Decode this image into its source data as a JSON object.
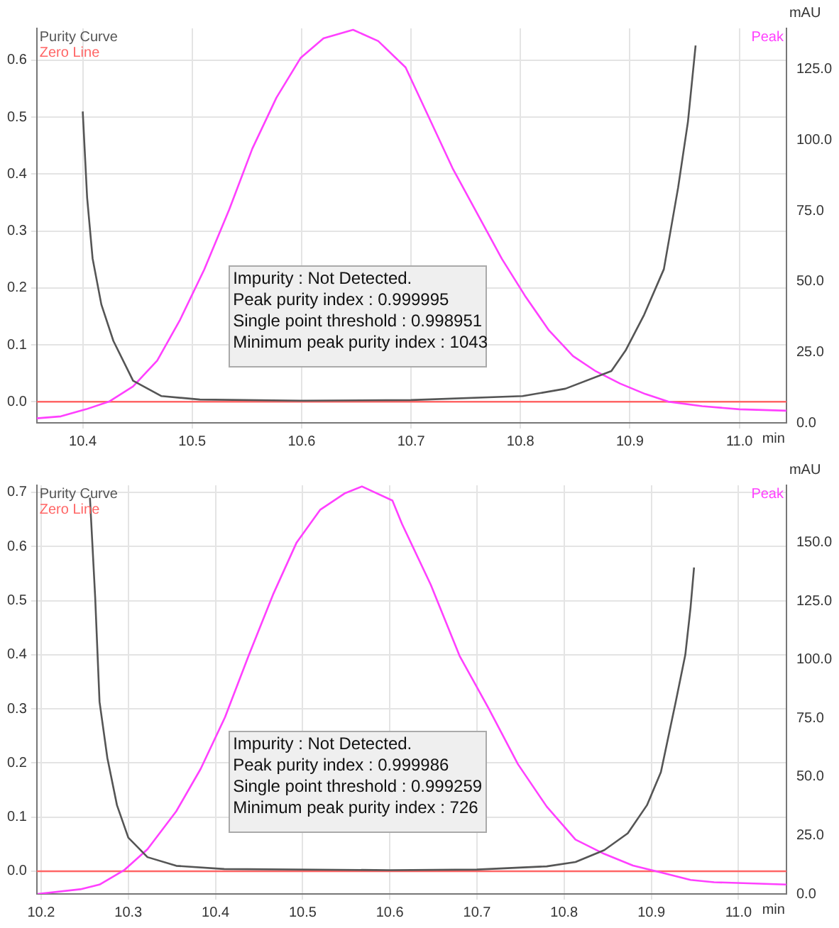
{
  "chart_data": [
    {
      "type": "line",
      "xlabel": "min",
      "y2label": "mAU",
      "xlim": [
        10.358,
        11.043
      ],
      "xticks": [
        10.4,
        10.5,
        10.6,
        10.7,
        10.8,
        10.9,
        {
          "value": 11,
          "label": "11.0"
        }
      ],
      "ylim": [
        -0.037,
        0.656
      ],
      "yticks": [
        {
          "value": 0,
          "label": "0.0"
        },
        0.1,
        0.2,
        0.3,
        0.4,
        0.5,
        0.6
      ],
      "y2lim": [
        0,
        139.5
      ],
      "y2ticks": [
        {
          "value": 0,
          "label": "0.0"
        },
        {
          "value": 25,
          "label": "25.0"
        },
        {
          "value": 50,
          "label": "50.0"
        },
        {
          "value": 75,
          "label": "75.0"
        },
        {
          "value": 100,
          "label": "100.0"
        },
        {
          "value": 125,
          "label": "125.0"
        }
      ],
      "grid": true,
      "legend": "top left",
      "series": [
        {
          "name": "Purity Curve",
          "color": "#555555",
          "x": [
            10.4,
            10.404,
            10.409,
            10.417,
            10.428,
            10.446,
            10.472,
            10.507,
            10.6,
            10.7,
            10.802,
            10.841,
            10.883,
            10.896,
            10.913,
            10.931,
            10.944,
            10.953,
            10.96
          ],
          "values": [
            0.51,
            0.359,
            0.252,
            0.171,
            0.107,
            0.037,
            0.01,
            0.004,
            0.002,
            0.003,
            0.01,
            0.023,
            0.054,
            0.09,
            0.153,
            0.233,
            0.376,
            0.492,
            0.626
          ]
        },
        {
          "name": "Peak",
          "color": "#ff40ff",
          "axis": "y2",
          "x": [
            10.358,
            10.38,
            10.403,
            10.424,
            10.446,
            10.468,
            10.489,
            10.511,
            10.534,
            10.555,
            10.577,
            10.599,
            10.62,
            10.647,
            10.67,
            10.695,
            10.738,
            10.783,
            10.804,
            10.826,
            10.848,
            10.869,
            10.891,
            10.914,
            10.935,
            10.966,
            11.0,
            11.043
          ],
          "values": [
            1.6,
            2.3,
            4.8,
            7.5,
            12.9,
            22,
            36.5,
            54.2,
            75.6,
            97,
            115,
            129,
            136,
            139,
            135,
            125.7,
            90,
            58,
            45,
            32.7,
            23.6,
            18.2,
            13.9,
            10.2,
            7.5,
            5.9,
            4.8,
            4.3
          ]
        }
      ],
      "ref_lines": [
        {
          "axis": "y",
          "value": 0,
          "label": "Zero Line",
          "color": "#ff6666"
        }
      ],
      "annotations": [
        "Impurity : Not Detected.",
        "Peak purity index : 0.999995",
        "Single point threshold : 0.998951",
        "Minimum peak purity index : 1043"
      ]
    },
    {
      "type": "line",
      "xlabel": "min",
      "y2label": "mAU",
      "xlim": [
        10.195,
        11.055
      ],
      "xticks": [
        10.2,
        10.3,
        10.4,
        10.5,
        10.6,
        10.7,
        10.8,
        10.9,
        {
          "value": 11,
          "label": "11.0"
        }
      ],
      "ylim": [
        -0.042,
        0.713
      ],
      "yticks": [
        {
          "value": 0,
          "label": "0.0"
        },
        0.1,
        0.2,
        0.3,
        0.4,
        0.5,
        0.6,
        0.7
      ],
      "y2lim": [
        0,
        174.5
      ],
      "y2ticks": [
        {
          "value": 0,
          "label": "0.0"
        },
        {
          "value": 25,
          "label": "25.0"
        },
        {
          "value": 50,
          "label": "50.0"
        },
        {
          "value": 75,
          "label": "75.0"
        },
        {
          "value": 100,
          "label": "100.0"
        },
        {
          "value": 125,
          "label": "125.0"
        },
        {
          "value": 150,
          "label": "150.0"
        }
      ],
      "grid": true,
      "legend": "top left",
      "series": [
        {
          "name": "Purity Curve",
          "color": "#555555",
          "x": [
            10.256,
            10.262,
            10.267,
            10.276,
            10.287,
            10.3,
            10.322,
            10.355,
            10.41,
            10.6,
            10.7,
            10.78,
            10.813,
            10.846,
            10.873,
            10.895,
            10.911,
            10.928,
            10.939,
            10.945,
            10.949
          ],
          "values": [
            0.69,
            0.506,
            0.313,
            0.209,
            0.122,
            0.062,
            0.026,
            0.01,
            0.004,
            0.002,
            0.003,
            0.009,
            0.017,
            0.039,
            0.07,
            0.122,
            0.183,
            0.313,
            0.4,
            0.487,
            0.561
          ]
        },
        {
          "name": "Peak",
          "color": "#ff40ff",
          "axis": "y2",
          "x": [
            10.196,
            10.245,
            10.267,
            10.295,
            10.322,
            10.355,
            10.383,
            10.411,
            10.438,
            10.466,
            10.493,
            10.52,
            10.548,
            10.568,
            10.603,
            10.614,
            10.647,
            10.68,
            10.713,
            10.747,
            10.78,
            10.813,
            10.846,
            10.879,
            10.912,
            10.945,
            10.972,
            11.055
          ],
          "values": [
            0,
            2,
            4,
            10.1,
            19.1,
            35.3,
            53.4,
            75.5,
            101.7,
            127.8,
            150,
            164,
            171,
            174,
            168,
            158,
            132,
            101.7,
            79.5,
            55.4,
            37.3,
            23.2,
            17.1,
            12.1,
            9.1,
            6,
            5,
            4
          ]
        }
      ],
      "ref_lines": [
        {
          "axis": "y",
          "value": 0,
          "label": "Zero Line",
          "color": "#ff6666"
        }
      ],
      "annotations": [
        "Impurity : Not Detected.",
        "Peak purity index : 0.999986",
        "Single point threshold : 0.999259",
        "Minimum peak purity index : 726"
      ]
    }
  ]
}
